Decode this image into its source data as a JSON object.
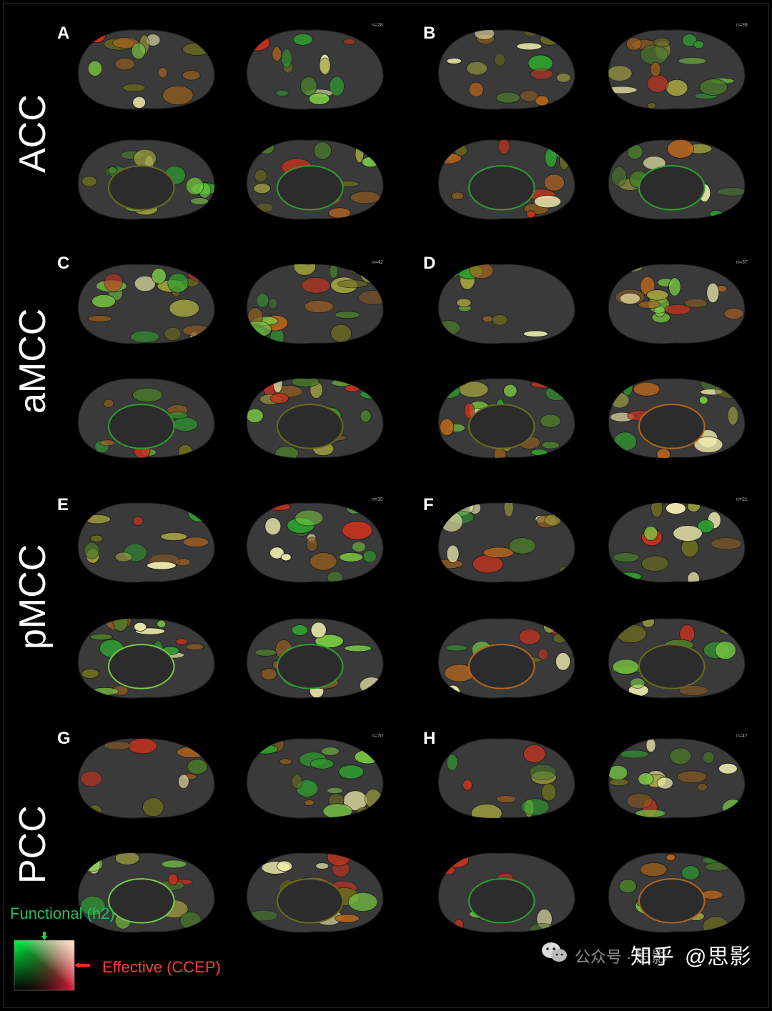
{
  "rows": [
    {
      "label": "ACC"
    },
    {
      "label": "aMCC"
    },
    {
      "label": "pMCC"
    },
    {
      "label": "PCC"
    }
  ],
  "panels": [
    {
      "letter": "A",
      "n": "n=28"
    },
    {
      "letter": "B",
      "n": "n=39"
    },
    {
      "letter": "C",
      "n": "n=42"
    },
    {
      "letter": "D",
      "n": "n=37"
    },
    {
      "letter": "E",
      "n": "n=35"
    },
    {
      "letter": "F",
      "n": "n=21"
    },
    {
      "letter": "G",
      "n": "n=70"
    },
    {
      "letter": "H",
      "n": "n=47"
    }
  ],
  "legend": {
    "functional": "Functional (h2)",
    "effective": "Effective (CCEP)",
    "functional_color": "#1fbf5f",
    "effective_color": "#ff3b3b"
  },
  "watermark": {
    "source": "公众号 · 思影",
    "platform": "知乎",
    "handle": "@思影"
  },
  "colors": {
    "cortex": "#3a3a3a",
    "outline": "#1a1a1a",
    "green": "#2f9e2f",
    "lime": "#7ac943",
    "olive": "#6b6b1f",
    "orange": "#b5651d",
    "cream": "#f3efb0",
    "red": "#c8321e"
  }
}
